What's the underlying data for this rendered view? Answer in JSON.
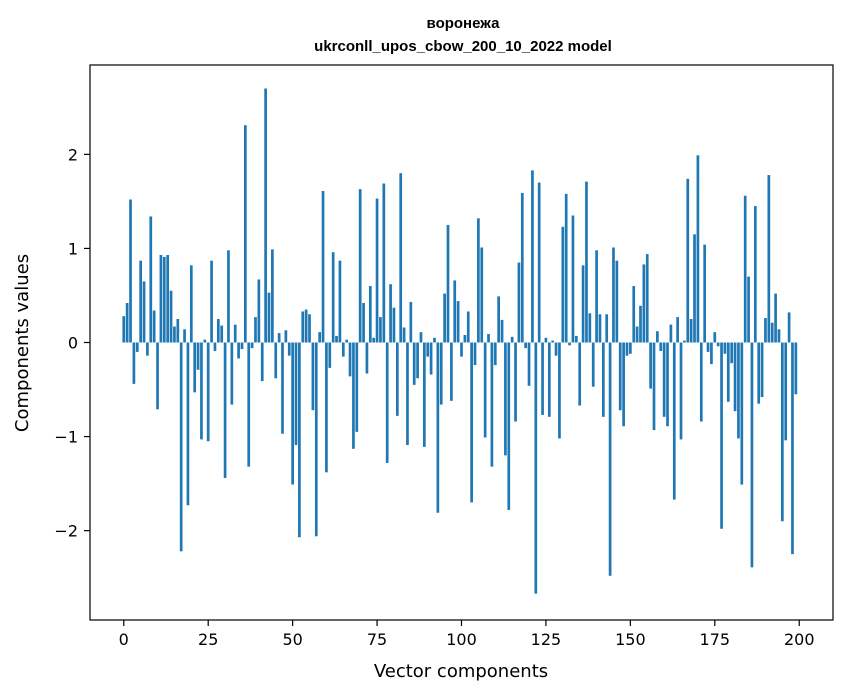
{
  "chart_data": {
    "type": "bar",
    "title": "воронежа",
    "subtitle": "ukrconll_upos_cbow_200_10_2022 model",
    "xlabel": "Vector components",
    "ylabel": "Components values",
    "xlim": [
      -10,
      210
    ],
    "ylim": [
      -2.95,
      2.95
    ],
    "xticks": [
      0,
      25,
      50,
      75,
      100,
      125,
      150,
      175,
      200
    ],
    "yticks": [
      -2,
      -1,
      0,
      1,
      2
    ],
    "ytick_labels": [
      "−2",
      "−1",
      "0",
      "1",
      "2"
    ],
    "color": "#1f77b4",
    "values": [
      0.28,
      0.42,
      1.52,
      -0.44,
      -0.1,
      0.87,
      0.65,
      -0.14,
      1.34,
      0.34,
      -0.71,
      0.93,
      0.91,
      0.93,
      0.55,
      0.17,
      0.25,
      -2.22,
      0.14,
      -1.73,
      0.82,
      -0.53,
      -0.29,
      -1.03,
      0.03,
      -1.05,
      0.87,
      -0.09,
      0.25,
      0.18,
      -1.44,
      0.98,
      -0.66,
      0.19,
      -0.17,
      -0.07,
      2.31,
      -1.32,
      -0.06,
      0.27,
      0.67,
      -0.41,
      2.7,
      0.53,
      0.99,
      -0.38,
      0.1,
      -0.97,
      0.13,
      -0.14,
      -1.51,
      -1.09,
      -2.07,
      0.33,
      0.35,
      0.3,
      -0.72,
      -2.06,
      0.11,
      1.61,
      -1.38,
      -0.27,
      0.96,
      0.07,
      0.87,
      -0.15,
      0.03,
      -0.36,
      -1.13,
      -0.95,
      1.63,
      0.42,
      -0.33,
      0.6,
      0.05,
      1.53,
      0.27,
      1.69,
      -1.28,
      0.62,
      0.37,
      -0.78,
      1.8,
      0.16,
      -1.09,
      0.43,
      -0.45,
      -0.38,
      0.11,
      -1.11,
      -0.15,
      -0.34,
      0.05,
      -1.81,
      -0.66,
      0.52,
      1.25,
      -0.62,
      0.66,
      0.44,
      -0.15,
      0.08,
      0.33,
      -1.7,
      -0.24,
      1.32,
      1.01,
      -1.01,
      0.09,
      -1.32,
      -0.24,
      0.49,
      0.24,
      -1.2,
      -1.78,
      0.06,
      -0.84,
      0.85,
      1.59,
      -0.06,
      -0.46,
      1.83,
      -2.67,
      1.7,
      -0.77,
      0.05,
      -0.79,
      0.02,
      -0.14,
      -1.02,
      1.23,
      1.58,
      -0.03,
      1.35,
      0.07,
      -0.67,
      0.82,
      1.71,
      0.31,
      -0.47,
      0.98,
      0.3,
      -0.79,
      0.3,
      -2.48,
      1.01,
      0.87,
      -0.72,
      -0.89,
      -0.14,
      -0.12,
      0.6,
      0.17,
      0.39,
      0.83,
      0.94,
      -0.49,
      -0.93,
      0.12,
      -0.09,
      -0.79,
      -0.89,
      0.19,
      -1.67,
      0.27,
      -1.03,
      0.02,
      1.74,
      0.25,
      1.15,
      1.99,
      -0.84,
      1.04,
      -0.1,
      -0.23,
      0.11,
      -0.04,
      -1.98,
      -0.12,
      -0.63,
      -0.22,
      -0.73,
      -1.02,
      -1.51,
      1.56,
      0.7,
      -2.39,
      1.45,
      -0.65,
      -0.58,
      0.26,
      1.78,
      0.21,
      0.52,
      0.14,
      -1.9,
      -1.04,
      0.32,
      -2.25,
      -0.55
    ]
  }
}
